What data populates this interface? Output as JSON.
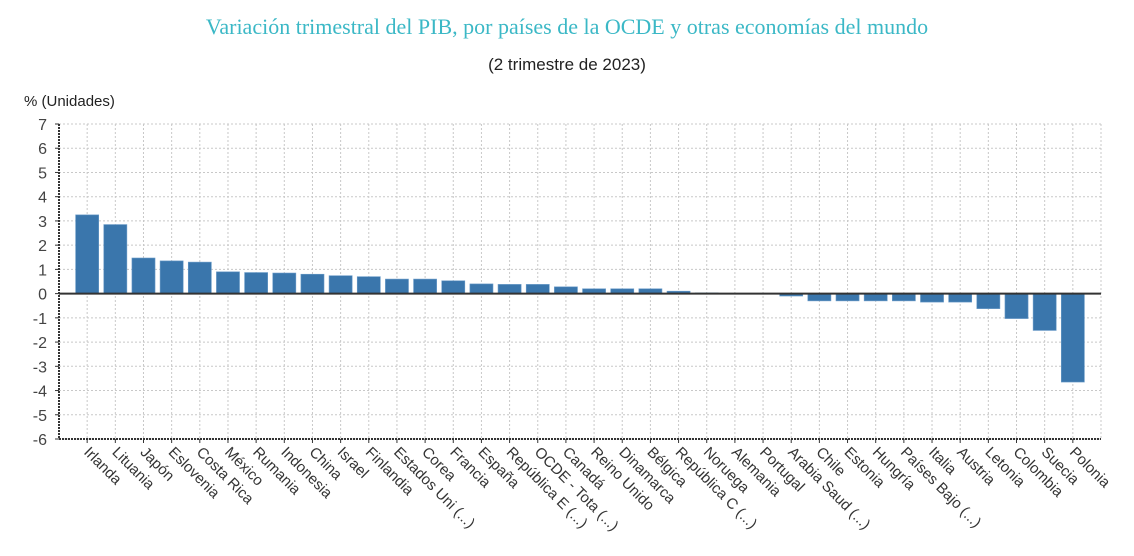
{
  "chart_data": {
    "type": "bar",
    "title": "Variación trimestral del PIB, por países de la OCDE y otras economías del mundo",
    "subtitle": "(2 trimestre de 2023)",
    "ylabel": "% (Unidades)",
    "xlabel": "",
    "ylim": [
      -6,
      7
    ],
    "yticks": [
      7,
      6,
      5,
      4,
      3,
      2,
      1,
      0,
      -1,
      -2,
      -3,
      -4,
      -5,
      -6
    ],
    "grid": true,
    "bar_color": "#3a76ac",
    "categories": [
      "Irlanda",
      "Lituania",
      "Japón",
      "Eslovenia",
      "Costa Rica",
      "México",
      "Rumania",
      "Indonesia",
      "China",
      "Israel",
      "Finlandia",
      "Estados Uni (...)",
      "Corea",
      "Francia",
      "España",
      "República E (...)",
      "OCDE - Tota (...)",
      "Canadá",
      "Reino Unido",
      "Dinamarca",
      "Bélgica",
      "República C (...)",
      "Noruega",
      "Alemania",
      "Portugal",
      "Arabia Saud (...)",
      "Chile",
      "Estonia",
      "Hungría",
      "Países Bajo (...)",
      "Italia",
      "Austria",
      "Letonia",
      "Colombia",
      "Suecia",
      "Polonia"
    ],
    "values": [
      3.25,
      2.85,
      1.47,
      1.35,
      1.3,
      0.9,
      0.87,
      0.85,
      0.8,
      0.74,
      0.7,
      0.6,
      0.6,
      0.53,
      0.4,
      0.38,
      0.38,
      0.28,
      0.2,
      0.2,
      0.2,
      0.1,
      0.03,
      0.0,
      -0.02,
      -0.1,
      -0.3,
      -0.3,
      -0.3,
      -0.3,
      -0.35,
      -0.35,
      -0.62,
      -1.03,
      -1.52,
      -3.65
    ]
  }
}
